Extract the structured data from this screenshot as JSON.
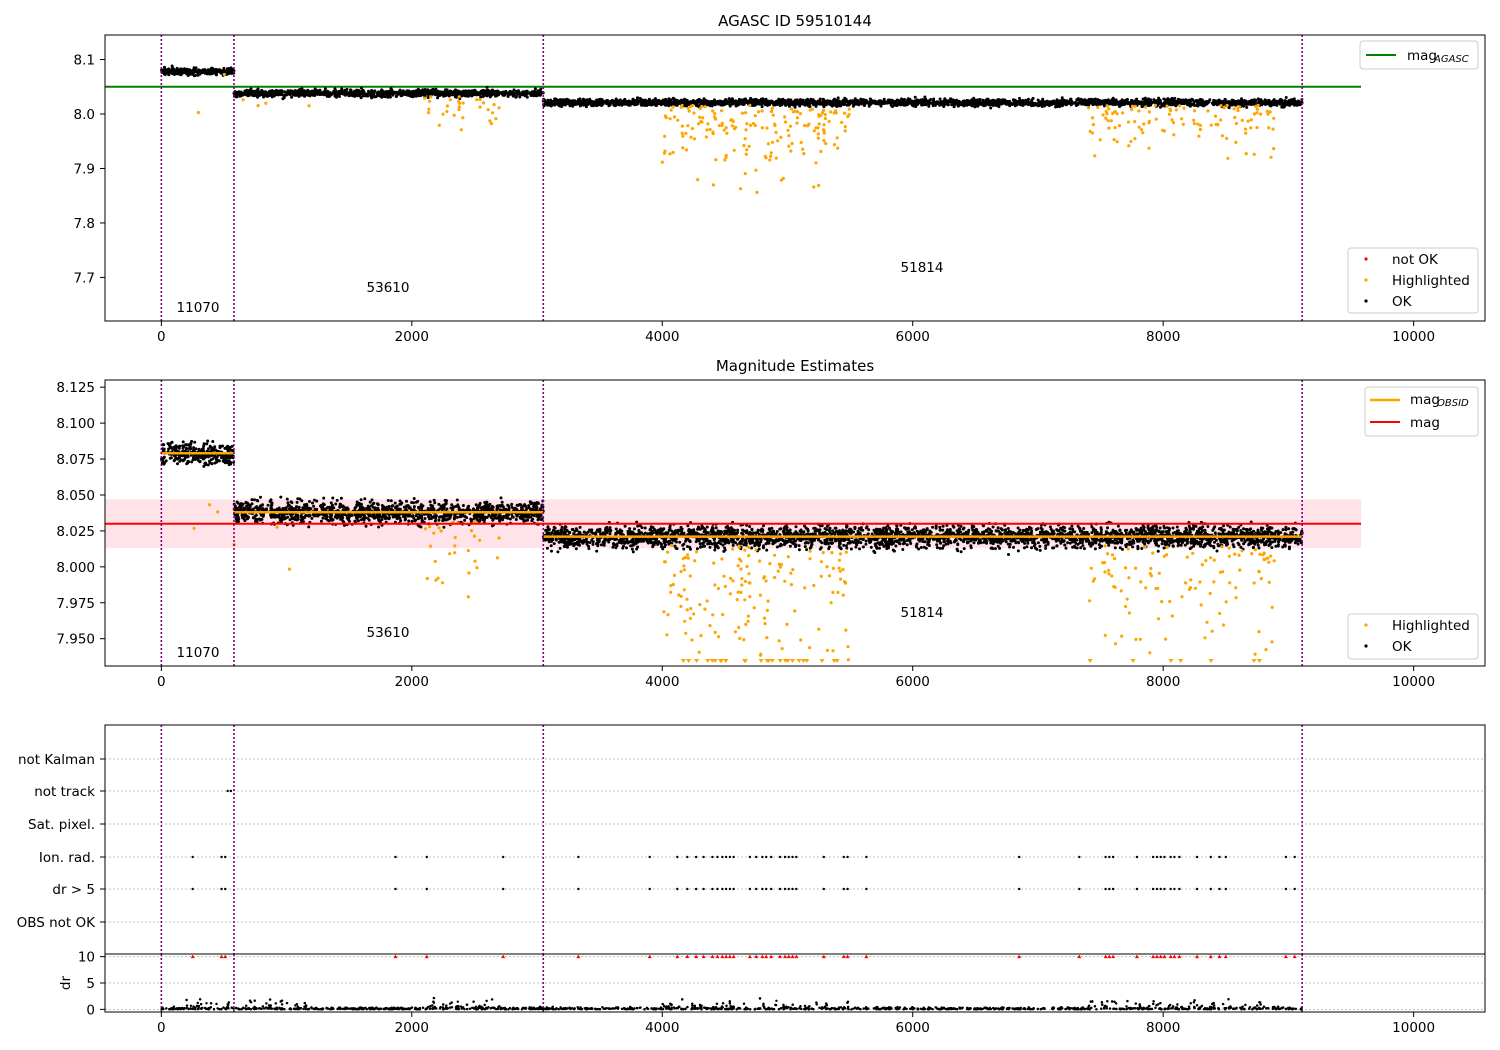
{
  "figure": {
    "shared_xticks": [
      0,
      2000,
      4000,
      6000,
      8000,
      10000
    ],
    "xlim": [
      -450,
      10570
    ],
    "obsid_boundaries": [
      0,
      580,
      3050,
      9110
    ],
    "colors": {
      "ok": "#000000",
      "highlighted": "#ffa500",
      "not_ok": "#ff0000",
      "mag_agasc": "#008000",
      "mag_obsid": "#ffa500",
      "mag": "#ff0000",
      "band": "#ffc0cb",
      "boundary": "#800080"
    }
  },
  "panel1": {
    "title": "AGASC ID 59510144",
    "legend_top": {
      "label_main": "mag",
      "label_sub": "AGASC"
    },
    "legend_bottom": {
      "items": [
        "not OK",
        "Highlighted",
        "OK"
      ]
    },
    "obsid_labels": [
      "11070",
      "53610",
      "51814"
    ]
  },
  "panel2": {
    "title": "Magnitude Estimates",
    "legend_top": {
      "label1_main": "mag",
      "label1_sub": "OBSID",
      "label2": "mag"
    },
    "legend_bottom": {
      "items": [
        "Highlighted",
        "OK"
      ]
    },
    "obsid_labels": [
      "11070",
      "53610",
      "51814"
    ]
  },
  "panel3": {
    "flag_labels": [
      "not Kalman",
      "not track",
      "Sat. pixel.",
      "Ion. rad.",
      "dr > 5",
      "OBS not OK"
    ],
    "dr_ylabel": "dr"
  },
  "chart_data": [
    {
      "type": "scatter",
      "title": "AGASC ID 59510144",
      "xlim": [
        -450,
        10570
      ],
      "ylim": [
        7.62,
        8.145
      ],
      "yticks": [
        7.7,
        7.8,
        7.9,
        8.0,
        8.1
      ],
      "xticks": [
        0,
        2000,
        4000,
        6000,
        8000,
        10000
      ],
      "legend": [
        "mag_AGASC",
        "not OK",
        "Highlighted",
        "OK"
      ],
      "mag_agasc": 8.05,
      "segments": [
        {
          "obsid": "11070",
          "x_range": [
            0,
            580
          ],
          "ok_level": 8.078
        },
        {
          "obsid": "53610",
          "x_range": [
            580,
            3050
          ],
          "ok_level": 8.038
        },
        {
          "obsid": "51814",
          "x_range": [
            3050,
            9110
          ],
          "ok_level": 8.021
        }
      ]
    },
    {
      "type": "scatter",
      "title": "Magnitude Estimates",
      "xlim": [
        -450,
        10570
      ],
      "ylim": [
        7.931,
        8.13
      ],
      "yticks": [
        7.95,
        7.975,
        8.0,
        8.025,
        8.05,
        8.075,
        8.1,
        8.125
      ],
      "xticks": [
        0,
        2000,
        4000,
        6000,
        8000,
        10000
      ],
      "legend": [
        "mag_OBSID",
        "mag",
        "Highlighted",
        "OK"
      ],
      "mag": 8.03,
      "mag_band": [
        8.013,
        8.047
      ],
      "mag_obsid": [
        {
          "obsid": "11070",
          "x_range": [
            0,
            580
          ],
          "value": 8.079
        },
        {
          "obsid": "53610",
          "x_range": [
            580,
            3050
          ],
          "value": 8.038
        },
        {
          "obsid": "51814",
          "x_range": [
            3050,
            9110
          ],
          "value": 8.021
        }
      ]
    },
    {
      "type": "scatter",
      "title": "",
      "categories": [
        "not Kalman",
        "not track",
        "Sat. pixel.",
        "Ion. rad.",
        "dr > 5",
        "OBS not OK"
      ],
      "xlim": [
        -450,
        10570
      ],
      "xticks": [
        0,
        2000,
        4000,
        6000,
        8000,
        10000
      ],
      "flag_x": [
        250,
        480,
        510,
        1870,
        2120,
        2730,
        3330,
        3900,
        4120,
        4200,
        4270,
        4330,
        4400,
        4440,
        4480,
        4510,
        4540,
        4570,
        4700,
        4750,
        4800,
        4830,
        4870,
        4940,
        4980,
        5010,
        5040,
        5070,
        5290,
        5450,
        5480,
        5630,
        6850,
        7330,
        7540,
        7570,
        7600,
        7790,
        7920,
        7950,
        7980,
        8010,
        8060,
        8090,
        8130,
        8270,
        8380,
        8450,
        8500,
        8980,
        9050
      ],
      "not_track_x": [
        530,
        555
      ],
      "dr_ylabel": "dr",
      "dr_yticks": [
        0,
        5,
        10
      ],
      "dr_ylim": [
        -0.5,
        10.5
      ]
    }
  ]
}
